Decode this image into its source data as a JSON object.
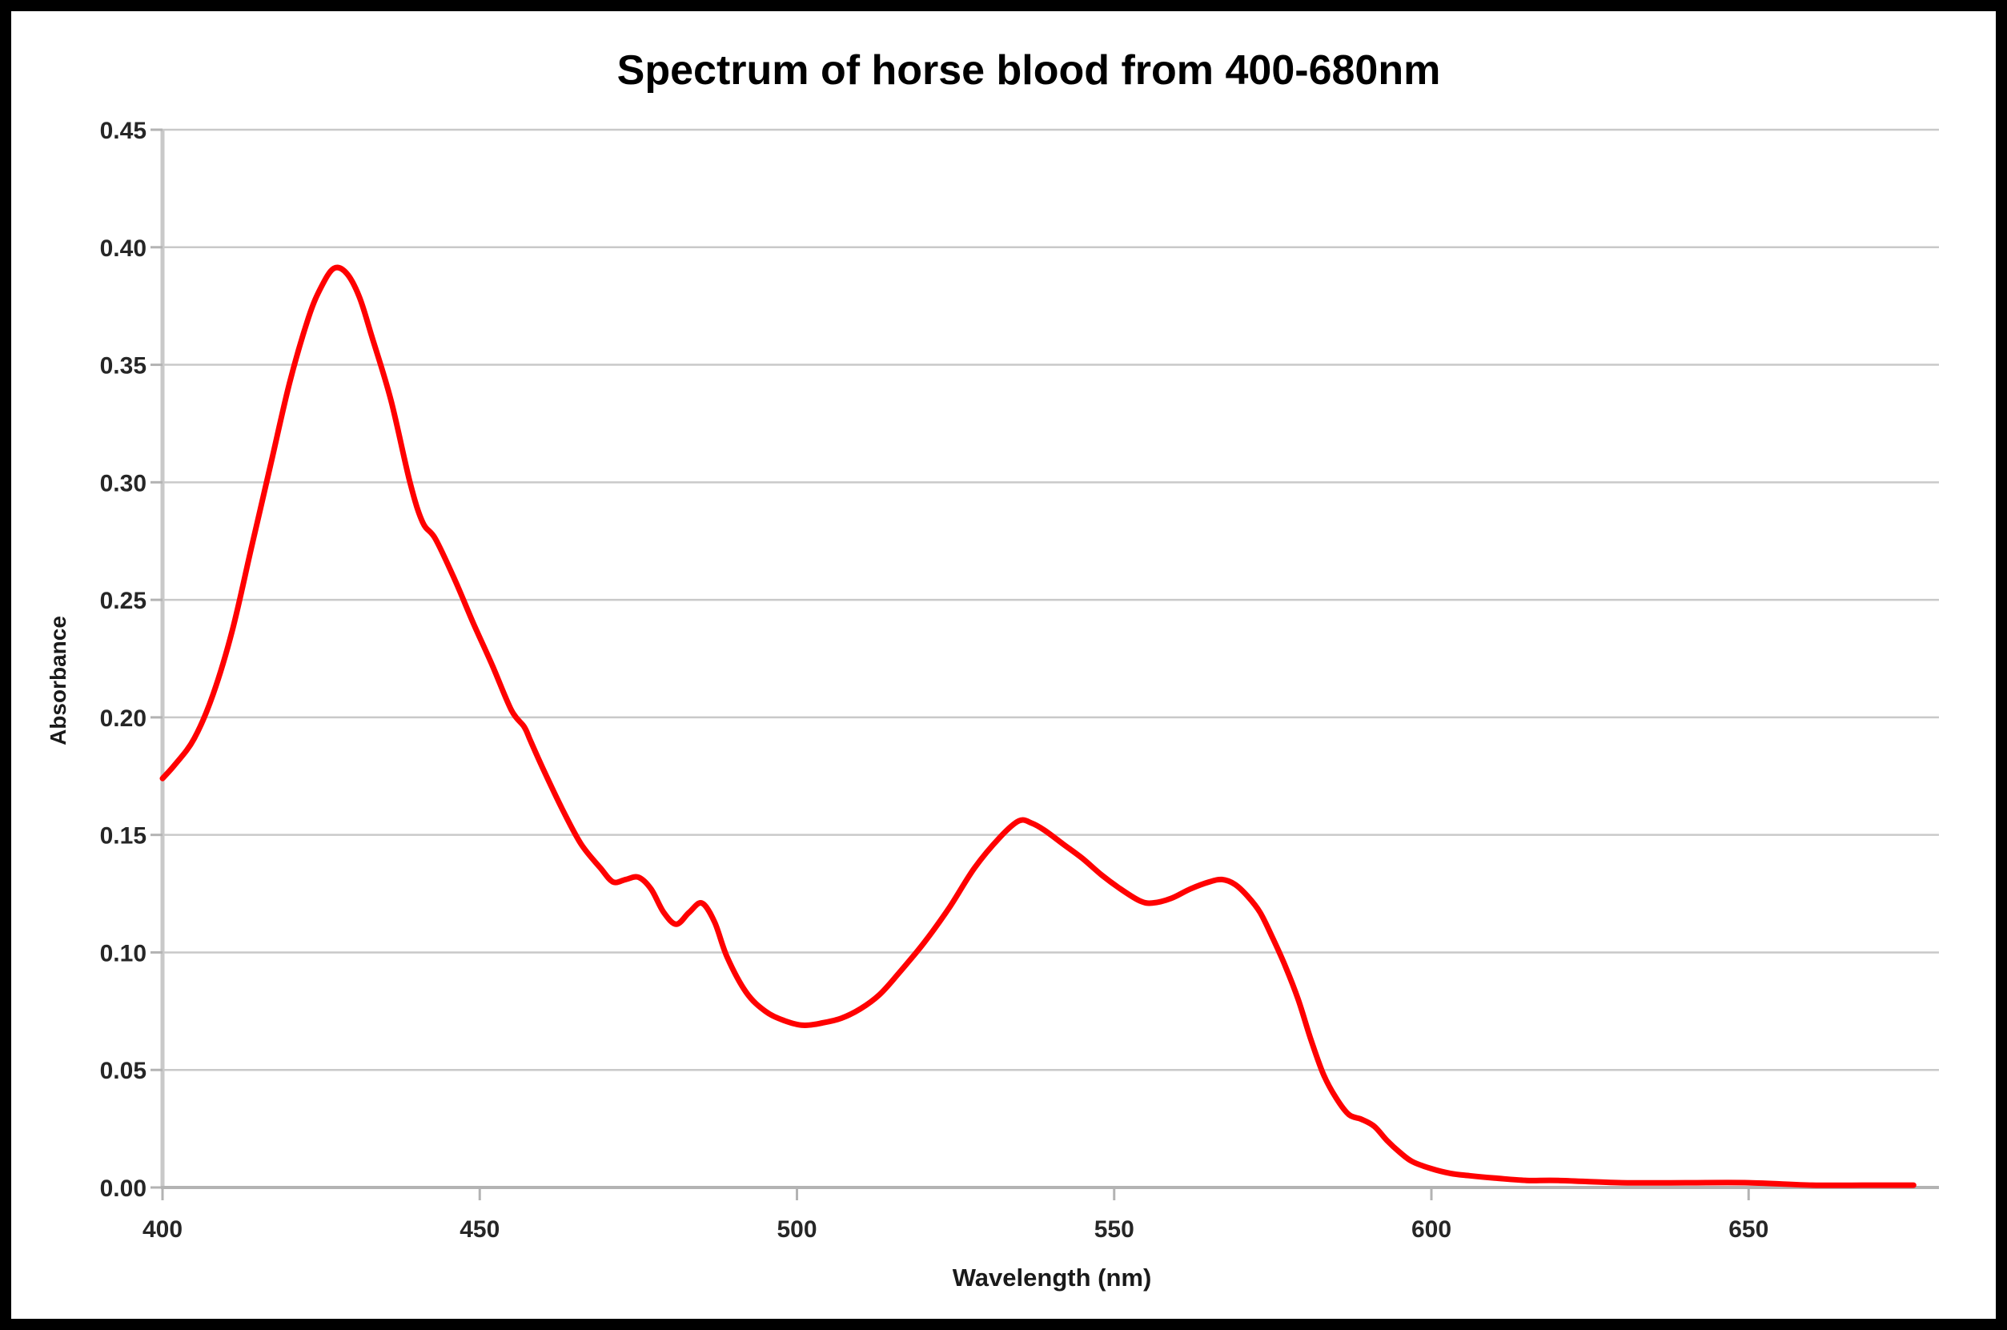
{
  "chart_data": {
    "type": "line",
    "title": "Spectrum of horse blood from 400-680nm",
    "xlabel": "Wavelength (nm)",
    "ylabel": "Absorbance",
    "xlim": [
      400,
      680
    ],
    "ylim": [
      0.0,
      0.45
    ],
    "grid": "horizontal",
    "legend": "none",
    "x_ticks": [
      400,
      450,
      500,
      550,
      600,
      650
    ],
    "x_tick_labels": [
      "400",
      "450",
      "500",
      "550",
      "600",
      "650"
    ],
    "y_ticks": [
      0.0,
      0.05,
      0.1,
      0.15,
      0.2,
      0.25,
      0.3,
      0.35,
      0.4,
      0.45
    ],
    "y_tick_labels": [
      "0.00",
      "0.05",
      "0.10",
      "0.15",
      "0.20",
      "0.25",
      "0.30",
      "0.35",
      "0.40",
      "0.45"
    ],
    "colors": {
      "line": "#ff0000",
      "grid": "#c9c9c9",
      "axis": "#b3b3b3",
      "tick_text": "#262626",
      "title_text": "#000000"
    },
    "series": [
      {
        "name": "Absorbance of horse blood",
        "color": "#ff0000",
        "points": [
          [
            400,
            0.174
          ],
          [
            402,
            0.18
          ],
          [
            405,
            0.191
          ],
          [
            408,
            0.21
          ],
          [
            411,
            0.237
          ],
          [
            414,
            0.272
          ],
          [
            417,
            0.307
          ],
          [
            420,
            0.342
          ],
          [
            423,
            0.37
          ],
          [
            425,
            0.383
          ],
          [
            427,
            0.391
          ],
          [
            429,
            0.389
          ],
          [
            431,
            0.379
          ],
          [
            433,
            0.362
          ],
          [
            436,
            0.335
          ],
          [
            439,
            0.3
          ],
          [
            441,
            0.283
          ],
          [
            443,
            0.276
          ],
          [
            446,
            0.259
          ],
          [
            449,
            0.24
          ],
          [
            452,
            0.222
          ],
          [
            455,
            0.203
          ],
          [
            457,
            0.196
          ],
          [
            458,
            0.19
          ],
          [
            460,
            0.178
          ],
          [
            463,
            0.161
          ],
          [
            466,
            0.146
          ],
          [
            469,
            0.136
          ],
          [
            471,
            0.13
          ],
          [
            473,
            0.131
          ],
          [
            475,
            0.132
          ],
          [
            477,
            0.127
          ],
          [
            479,
            0.117
          ],
          [
            481,
            0.112
          ],
          [
            483,
            0.117
          ],
          [
            485,
            0.121
          ],
          [
            487,
            0.113
          ],
          [
            489,
            0.098
          ],
          [
            492,
            0.083
          ],
          [
            495,
            0.075
          ],
          [
            498,
            0.071
          ],
          [
            501,
            0.069
          ],
          [
            504,
            0.07
          ],
          [
            507,
            0.072
          ],
          [
            510,
            0.076
          ],
          [
            513,
            0.082
          ],
          [
            516,
            0.091
          ],
          [
            520,
            0.104
          ],
          [
            524,
            0.119
          ],
          [
            528,
            0.136
          ],
          [
            532,
            0.149
          ],
          [
            535,
            0.156
          ],
          [
            537,
            0.155
          ],
          [
            539,
            0.152
          ],
          [
            542,
            0.146
          ],
          [
            545,
            0.14
          ],
          [
            548,
            0.133
          ],
          [
            551,
            0.127
          ],
          [
            554,
            0.122
          ],
          [
            556,
            0.121
          ],
          [
            559,
            0.123
          ],
          [
            562,
            0.127
          ],
          [
            565,
            0.13
          ],
          [
            567,
            0.131
          ],
          [
            569,
            0.129
          ],
          [
            571,
            0.124
          ],
          [
            573,
            0.117
          ],
          [
            575,
            0.106
          ],
          [
            577,
            0.094
          ],
          [
            579,
            0.08
          ],
          [
            581,
            0.063
          ],
          [
            583,
            0.048
          ],
          [
            585,
            0.038
          ],
          [
            587,
            0.031
          ],
          [
            589,
            0.029
          ],
          [
            591,
            0.026
          ],
          [
            593,
            0.02
          ],
          [
            595,
            0.015
          ],
          [
            597,
            0.011
          ],
          [
            600,
            0.008
          ],
          [
            603,
            0.006
          ],
          [
            606,
            0.005
          ],
          [
            610,
            0.004
          ],
          [
            615,
            0.003
          ],
          [
            620,
            0.003
          ],
          [
            630,
            0.002
          ],
          [
            640,
            0.002
          ],
          [
            650,
            0.002
          ],
          [
            660,
            0.001
          ],
          [
            668,
            0.001
          ],
          [
            676,
            0.001
          ]
        ]
      }
    ]
  }
}
